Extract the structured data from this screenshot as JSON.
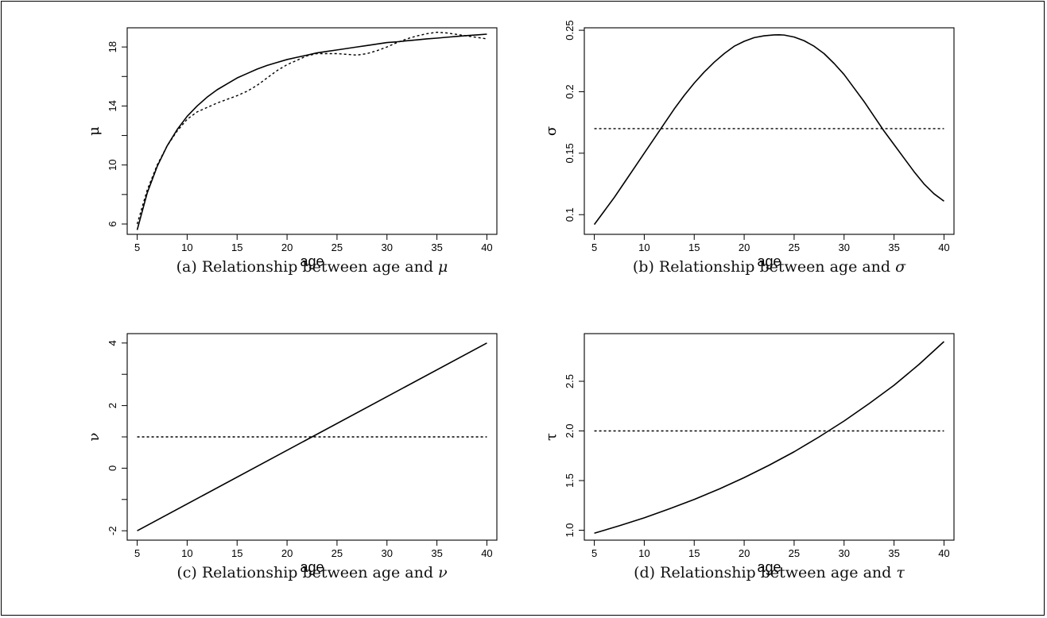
{
  "chart_data": [
    {
      "type": "line",
      "caption": {
        "prefix": "(a)",
        "text": "Relationship between age and",
        "symbol": "μ"
      },
      "xlabel": "age",
      "ylabel": "μ",
      "xlim": [
        4,
        41
      ],
      "ylim": [
        5.3,
        19.3
      ],
      "xticks": [
        5,
        10,
        15,
        20,
        25,
        30,
        35,
        40
      ],
      "yticks": [
        6,
        10,
        14,
        18
      ],
      "yminor": [
        8,
        12,
        16
      ],
      "grid": false,
      "series": [
        {
          "style": "solid",
          "x": [
            5,
            6,
            7,
            8,
            9,
            10,
            11,
            12,
            13,
            14,
            15,
            16,
            17,
            18,
            19,
            20,
            21,
            22,
            23,
            24,
            25,
            26,
            27,
            28,
            29,
            30,
            31,
            32,
            33,
            34,
            35,
            36,
            37,
            38,
            39,
            40
          ],
          "y": [
            5.6,
            8.1,
            9.9,
            11.3,
            12.4,
            13.3,
            14.0,
            14.6,
            15.1,
            15.5,
            15.9,
            16.2,
            16.5,
            16.75,
            16.95,
            17.15,
            17.3,
            17.45,
            17.6,
            17.7,
            17.8,
            17.9,
            18.0,
            18.1,
            18.2,
            18.3,
            18.35,
            18.42,
            18.48,
            18.55,
            18.6,
            18.66,
            18.72,
            18.77,
            18.82,
            18.87
          ]
        },
        {
          "style": "dotted",
          "x": [
            5,
            6,
            7,
            8,
            9,
            10,
            11,
            12,
            13,
            14,
            15,
            16,
            17,
            18,
            19,
            20,
            21,
            22,
            23,
            24,
            25,
            26,
            27,
            28,
            29,
            30,
            31,
            32,
            33,
            34,
            35,
            36,
            37,
            38,
            39,
            40
          ],
          "y": [
            6.0,
            8.3,
            10.0,
            11.3,
            12.3,
            13.1,
            13.6,
            13.9,
            14.2,
            14.45,
            14.7,
            15.0,
            15.4,
            15.9,
            16.4,
            16.8,
            17.1,
            17.4,
            17.55,
            17.55,
            17.55,
            17.5,
            17.45,
            17.55,
            17.75,
            18.0,
            18.3,
            18.55,
            18.75,
            18.9,
            19.0,
            18.95,
            18.85,
            18.75,
            18.65,
            18.55
          ]
        }
      ]
    },
    {
      "type": "line",
      "caption": {
        "prefix": "(b)",
        "text": "Relationship between age and",
        "symbol": "σ"
      },
      "xlabel": "age",
      "ylabel": "σ",
      "xlim": [
        4,
        41
      ],
      "ylim": [
        0.084,
        0.252
      ],
      "xticks": [
        5,
        10,
        15,
        20,
        25,
        30,
        35,
        40
      ],
      "yticks": [
        0.1,
        0.15,
        0.2,
        0.25
      ],
      "ytick_labels": [
        "0.1",
        "0.15",
        "0.2",
        "0.25"
      ],
      "yminor": [],
      "grid": false,
      "series": [
        {
          "style": "solid",
          "x": [
            5,
            6,
            7,
            8,
            9,
            10,
            11,
            12,
            13,
            14,
            15,
            16,
            17,
            18,
            19,
            20,
            21,
            22,
            23,
            23.5,
            24,
            25,
            26,
            27,
            28,
            29,
            30,
            31,
            32,
            33,
            34,
            35,
            36,
            37,
            38,
            39,
            40
          ],
          "y": [
            0.092,
            0.103,
            0.114,
            0.126,
            0.138,
            0.15,
            0.162,
            0.174,
            0.186,
            0.197,
            0.207,
            0.216,
            0.224,
            0.231,
            0.237,
            0.241,
            0.244,
            0.2455,
            0.2462,
            0.2463,
            0.2461,
            0.2445,
            0.2415,
            0.237,
            0.231,
            0.223,
            0.214,
            0.203,
            0.192,
            0.18,
            0.168,
            0.157,
            0.146,
            0.135,
            0.125,
            0.117,
            0.111
          ]
        },
        {
          "style": "dotted",
          "x": [
            5,
            40
          ],
          "y": [
            0.17,
            0.17
          ]
        }
      ]
    },
    {
      "type": "line",
      "caption": {
        "prefix": "(c)",
        "text": "Relationship between age and",
        "symbol": "ν"
      },
      "xlabel": "age",
      "ylabel": "ν",
      "xlim": [
        4,
        41
      ],
      "ylim": [
        -2.3,
        4.3
      ],
      "xticks": [
        5,
        10,
        15,
        20,
        25,
        30,
        35,
        40
      ],
      "yticks": [
        -2,
        0,
        2,
        4
      ],
      "yminor": [
        -1,
        1,
        3
      ],
      "grid": false,
      "series": [
        {
          "style": "solid",
          "x": [
            5,
            40
          ],
          "y": [
            -2,
            4
          ]
        },
        {
          "style": "dotted",
          "x": [
            5,
            40
          ],
          "y": [
            1,
            1
          ]
        }
      ]
    },
    {
      "type": "line",
      "caption": {
        "prefix": "(d)",
        "text": "Relationship between age and",
        "symbol": "τ"
      },
      "xlabel": "age",
      "ylabel": "τ",
      "xlim": [
        4,
        41
      ],
      "ylim": [
        0.9,
        2.98
      ],
      "xticks": [
        5,
        10,
        15,
        20,
        25,
        30,
        35,
        40
      ],
      "yticks": [
        1.0,
        1.5,
        2.0,
        2.5
      ],
      "ytick_labels": [
        "1.0",
        "1.5",
        "2.0",
        "2.5"
      ],
      "yminor": [],
      "grid": false,
      "series": [
        {
          "style": "solid",
          "x": [
            5,
            7.5,
            10,
            12.5,
            15,
            17.5,
            20,
            22.5,
            25,
            27.5,
            30,
            32.5,
            35,
            37.5,
            40
          ],
          "y": [
            0.97,
            1.045,
            1.125,
            1.215,
            1.31,
            1.415,
            1.53,
            1.655,
            1.79,
            1.94,
            2.1,
            2.275,
            2.46,
            2.67,
            2.9
          ]
        },
        {
          "style": "dotted",
          "x": [
            5,
            40
          ],
          "y": [
            2.0,
            2.0
          ]
        }
      ]
    }
  ]
}
